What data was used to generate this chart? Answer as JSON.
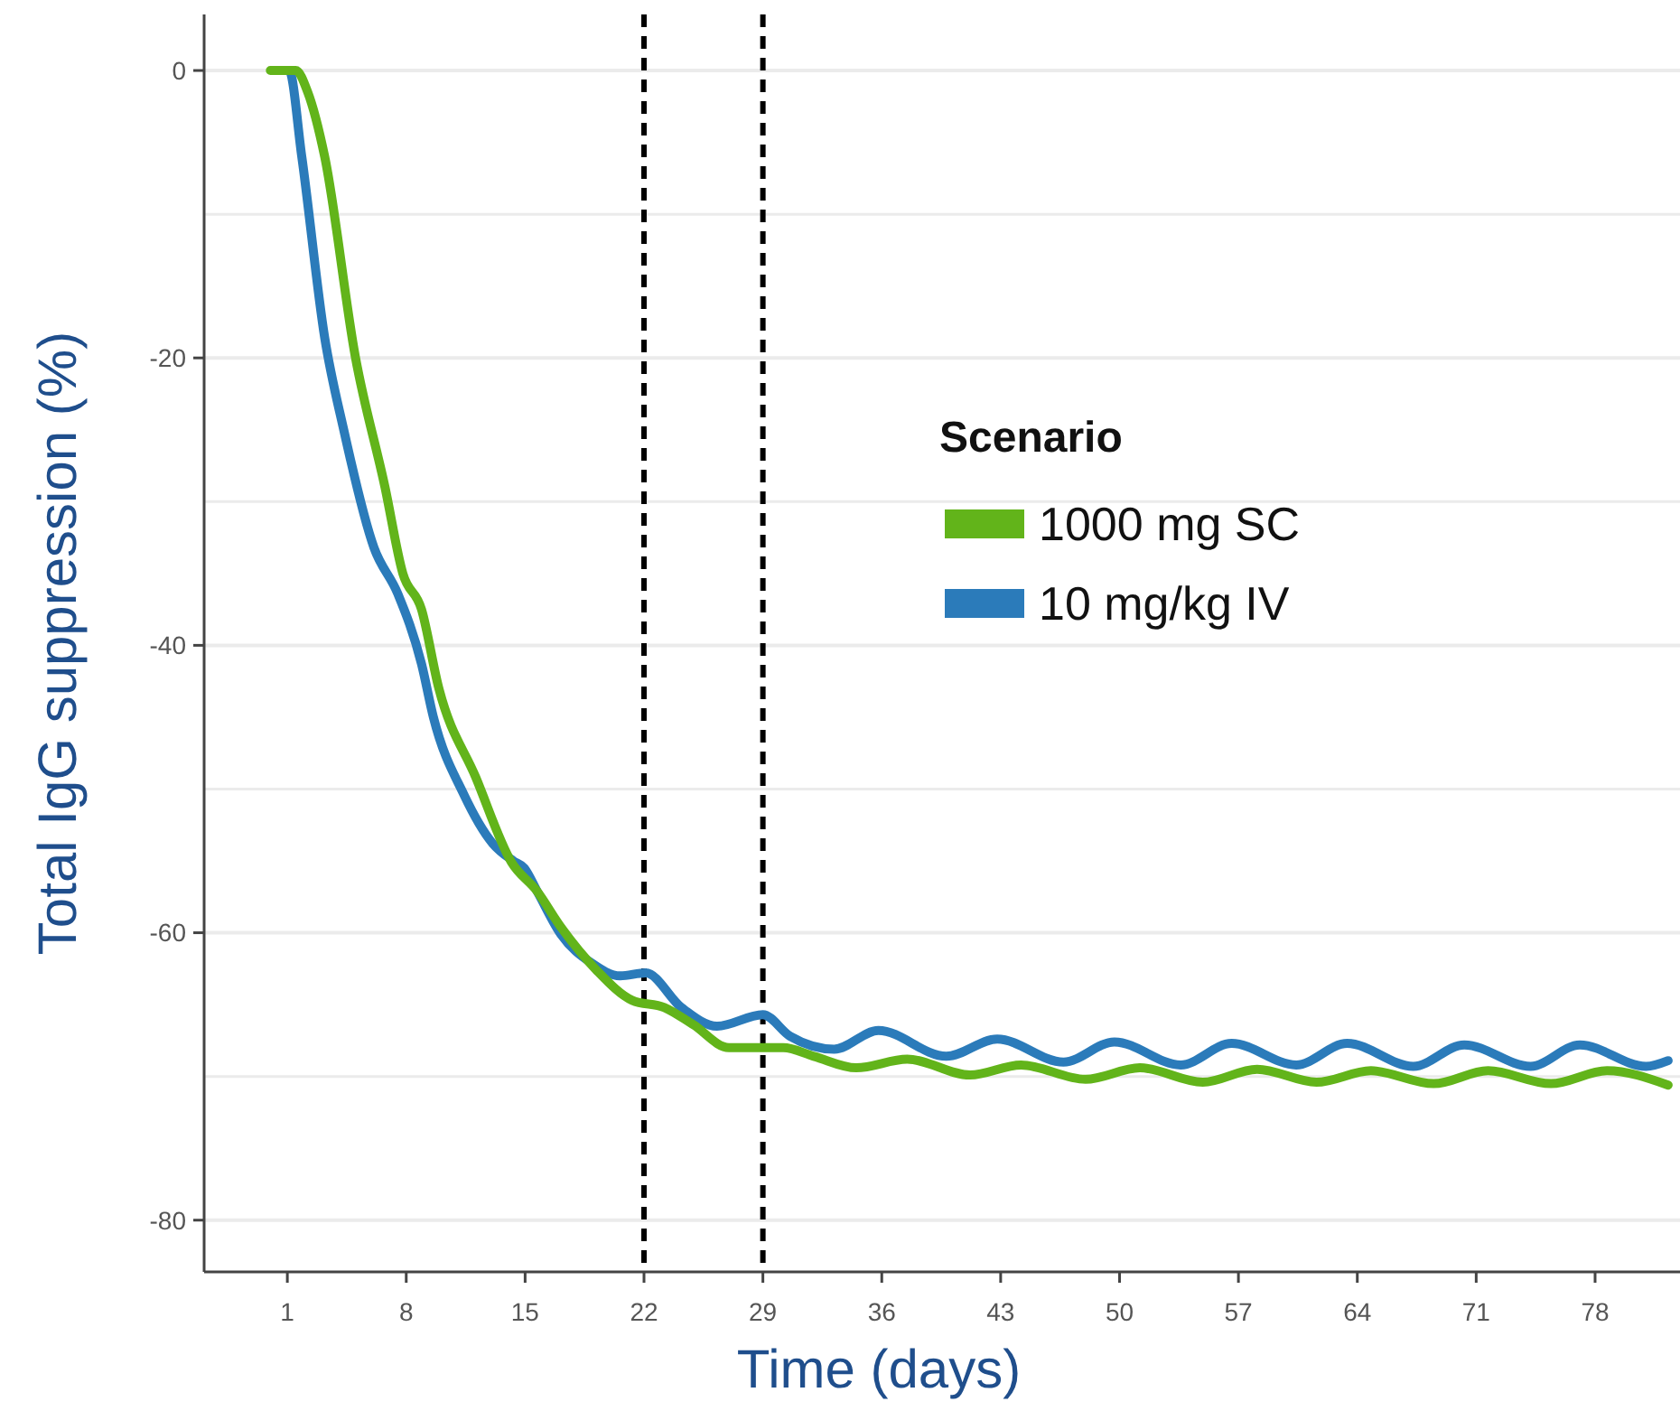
{
  "chart_data": {
    "type": "line",
    "xlabel": "Time (days)",
    "ylabel": "Total IgG suppression (%)",
    "legend_title": "Scenario",
    "legend": "right",
    "grid": "y",
    "marker": "none",
    "line_style": "solid",
    "xlim": [
      -3.9,
      83
    ],
    "xticks": [
      1,
      8,
      15,
      22,
      29,
      36,
      43,
      50,
      57,
      64,
      71,
      78
    ],
    "ylim": [
      -83.6,
      3.9
    ],
    "yticks": [
      0,
      {
        "value": -10,
        "label": null
      },
      -20,
      {
        "value": -30,
        "label": null
      },
      -40,
      {
        "value": -50,
        "label": null
      },
      -60,
      {
        "value": -70,
        "label": null
      },
      -80
    ],
    "ref_lines": [
      {
        "axis": "x",
        "value": 22,
        "color": "#000000",
        "line_style": "dashed"
      },
      {
        "axis": "x",
        "value": 29,
        "color": "#000000",
        "line_style": "dashed"
      }
    ],
    "series": [
      {
        "name": "10 mg/kg IV",
        "color": "#2b7bba",
        "x": [
          1,
          1.1,
          1.85,
          3.2,
          4.3,
          6.1,
          7.5,
          8.9,
          9.6,
          11.4,
          13.1,
          14.3,
          14.95,
          15.7,
          17.1,
          18.9,
          20.6,
          22.1,
          24.2,
          26.3,
          29,
          30.6,
          33.2,
          35.8,
          39.8,
          42.8,
          46.7,
          49.7,
          53.6,
          56.6,
          60.4,
          63.4,
          67.3,
          70.3,
          74.2,
          77.1,
          81,
          82.3
        ],
        "values": [
          0,
          0,
          -6,
          -18.6,
          -24.9,
          -33.2,
          -36.4,
          -41.3,
          -45,
          -50.4,
          -53.8,
          -55,
          -55.5,
          -57.1,
          -60.1,
          -62.1,
          -63,
          -62.8,
          -65.2,
          -66.5,
          -65.7,
          -67.2,
          -68.1,
          -66.8,
          -68.6,
          -67.4,
          -69,
          -67.6,
          -69.2,
          -67.7,
          -69.2,
          -67.7,
          -69.3,
          -67.8,
          -69.3,
          -67.8,
          -69.3,
          -68.9
        ]
      },
      {
        "name": "1000 mg SC",
        "color": "#62b41a",
        "x": [
          0,
          1.5,
          2.2,
          3.2,
          5,
          6.75,
          7.8,
          8.9,
          9.9,
          12.1,
          14.2,
          15.7,
          17.1,
          19.2,
          21.3,
          23.2,
          24.9,
          27,
          30.2,
          32,
          34.5,
          37.5,
          41.2,
          44.2,
          48,
          51.2,
          54.9,
          58.1,
          61.6,
          64.8,
          68.5,
          71.7,
          75.4,
          78.7,
          82.3
        ],
        "values": [
          0,
          0,
          -1.5,
          -6,
          -19.9,
          -29,
          -35,
          -37.5,
          -42.9,
          -49.2,
          -55.1,
          -57.1,
          -59.6,
          -62.6,
          -64.7,
          -65.2,
          -66.4,
          -68,
          -68,
          -68.6,
          -69.4,
          -68.8,
          -69.9,
          -69.2,
          -70.2,
          -69.4,
          -70.4,
          -69.5,
          -70.4,
          -69.6,
          -70.5,
          -69.6,
          -70.5,
          -69.6,
          -70.6
        ]
      }
    ]
  }
}
